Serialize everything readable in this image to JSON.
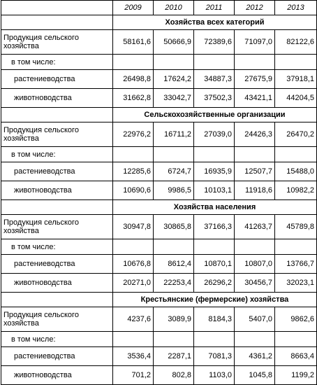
{
  "years": [
    "2009",
    "2010",
    "2011",
    "2012",
    "2013"
  ],
  "sections": [
    {
      "title": "Хозяйства всех категорий",
      "total_label": "Продукция сельского хозяйства",
      "total_values": [
        "58161,6",
        "50666,9",
        "72389,6",
        "71097,0",
        "82122,6"
      ],
      "sub_label": "в том числе:",
      "rows": [
        {
          "label": "растениеводства",
          "values": [
            "26498,8",
            "17624,2",
            "34887,3",
            "27675,9",
            "37918,1"
          ]
        },
        {
          "label": "животноводства",
          "values": [
            "31662,8",
            "33042,7",
            "37502,3",
            "43421,1",
            "44204,5"
          ]
        }
      ]
    },
    {
      "title": "Сельскохозяйственные организации",
      "total_label": "Продукция сельского хозяйства",
      "total_values": [
        "22976,2",
        "16711,2",
        "27039,0",
        "24426,3",
        "26470,2"
      ],
      "sub_label": "в том числе:",
      "rows": [
        {
          "label": "растениеводства",
          "values": [
            "12285,6",
            "6724,7",
            "16935,9",
            "12507,7",
            "15488,0"
          ]
        },
        {
          "label": "животноводства",
          "values": [
            "10690,6",
            "9986,5",
            "10103,1",
            "11918,6",
            "10982,2"
          ]
        }
      ]
    },
    {
      "title": "Хозяйства населения",
      "total_label": "Продукция сельского хозяйства",
      "total_values": [
        "30947,8",
        "30865,8",
        "37166,3",
        "41263,7",
        "45789,8"
      ],
      "sub_label": "в том числе:",
      "rows": [
        {
          "label": "растениеводства",
          "values": [
            "10676,8",
            "8612,4",
            "10870,1",
            "10807,0",
            "13766,7"
          ]
        },
        {
          "label": "животноводства",
          "values": [
            "20271,0",
            "22253,4",
            "26296,2",
            "30456,7",
            "32023,1"
          ]
        }
      ]
    },
    {
      "title": "Крестьянские (фермерские) хозяйства",
      "total_label": "Продукция сельского хозяйства",
      "total_values": [
        "4237,6",
        "3089,9",
        "8184,3",
        "5407,0",
        "9862,6"
      ],
      "sub_label": "в том числе:",
      "rows": [
        {
          "label": "растениеводства",
          "values": [
            "3536,4",
            "2287,1",
            "7081,3",
            "4361,2",
            "8663,4"
          ]
        },
        {
          "label": "животноводства",
          "values": [
            "701,2",
            "802,8",
            "1103,0",
            "1045,8",
            "1199,2"
          ]
        }
      ]
    }
  ]
}
